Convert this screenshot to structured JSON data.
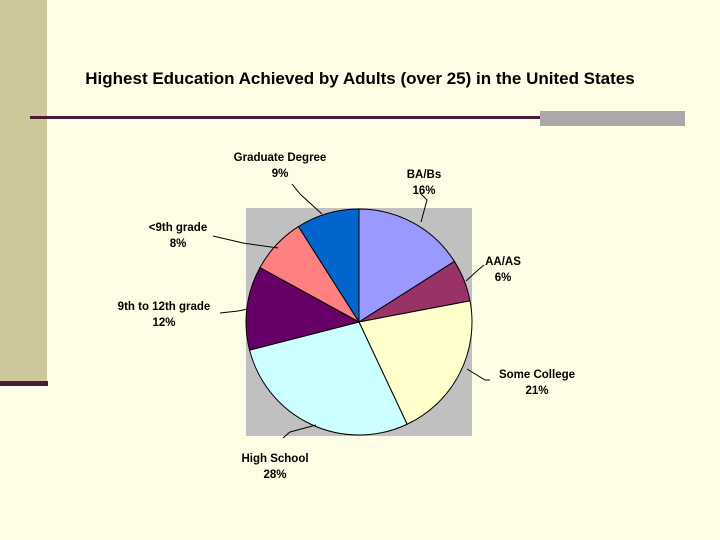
{
  "chart_data": {
    "type": "pie",
    "title": "Highest Education Achieved by Adults (over 25) in the United States",
    "slices": [
      {
        "label": "BA/Bs",
        "pct_label": "16%",
        "value": 16,
        "color": "#9999ff"
      },
      {
        "label": "AA/AS",
        "pct_label": "6%",
        "value": 6,
        "color": "#993366"
      },
      {
        "label": "Some College",
        "pct_label": "21%",
        "value": 21,
        "color": "#ffffcc"
      },
      {
        "label": "High School",
        "pct_label": "28%",
        "value": 28,
        "color": "#ccffff"
      },
      {
        "label": "9th to 12th grade",
        "pct_label": "12%",
        "value": 12,
        "color": "#660066"
      },
      {
        "label": "<9th grade",
        "pct_label": "8%",
        "value": 8,
        "color": "#ff8080"
      },
      {
        "label": "Graduate Degree",
        "pct_label": "9%",
        "value": 9,
        "color": "#0066cc"
      }
    ],
    "plot_area_color": "#c0c0c0",
    "start_angle_deg": 0,
    "direction": "clockwise"
  }
}
